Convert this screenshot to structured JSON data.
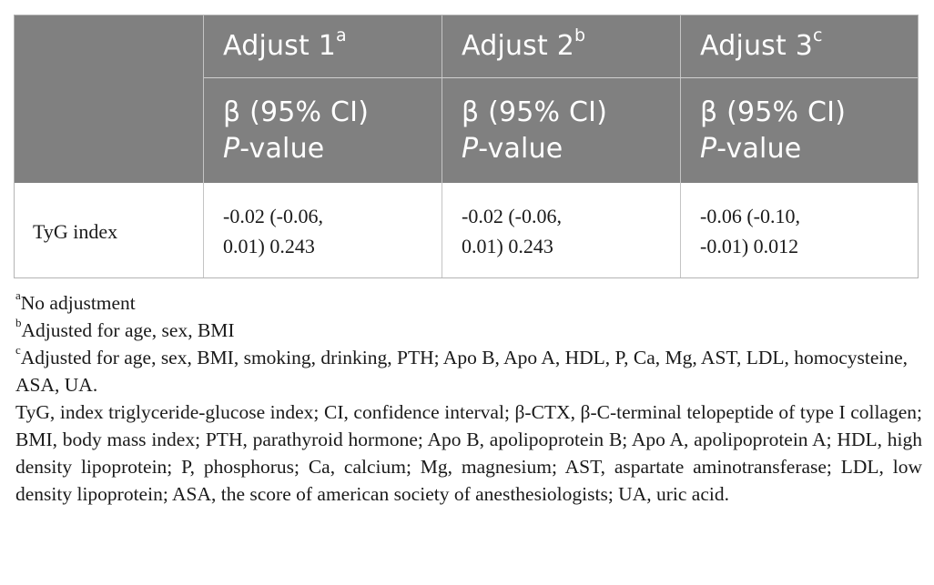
{
  "table": {
    "columns": [
      {
        "title": "Adjust 1",
        "marker": "a",
        "stat_label": "β (95% CI)",
        "p_label_italic": "P",
        "p_label_rest": "-value"
      },
      {
        "title": "Adjust 2",
        "marker": "b",
        "stat_label": "β (95% CI)",
        "p_label_italic": "P",
        "p_label_rest": "-value"
      },
      {
        "title": "Adjust 3",
        "marker": "c",
        "stat_label": "β (95% CI)",
        "p_label_italic": "P",
        "p_label_rest": "-value"
      }
    ],
    "rows": [
      {
        "label": "TyG index",
        "cells": [
          {
            "line1": "-0.02 (-0.06,",
            "line2": "0.01) 0.243"
          },
          {
            "line1": "-0.02 (-0.06,",
            "line2": "0.01) 0.243"
          },
          {
            "line1": "-0.06 (-0.10,",
            "line2": "-0.01) 0.012"
          }
        ]
      }
    ]
  },
  "footnotes": [
    {
      "marker": "a",
      "text": "No adjustment"
    },
    {
      "marker": "b",
      "text": "Adjusted for age, sex, BMI"
    },
    {
      "marker": "c",
      "text": "Adjusted for age, sex, BMI, smoking, drinking, PTH; Apo B, Apo A, HDL, P, Ca, Mg, AST, LDL, homocysteine, ASA, UA."
    }
  ],
  "abbreviations": "TyG, index triglyceride-glucose index; CI, confidence interval; β-CTX, β-C-terminal telopeptide of type I collagen; BMI, body mass index; PTH, parathyroid hormone; Apo B, apolipoprotein B; Apo A, apolipoprotein A; HDL, high density lipoprotein; P, phosphorus; Ca, calcium; Mg, magnesium; AST, aspartate aminotransferase; LDL, low density lipoprotein; ASA, the score of american society of anesthesiologists; UA, uric acid."
}
